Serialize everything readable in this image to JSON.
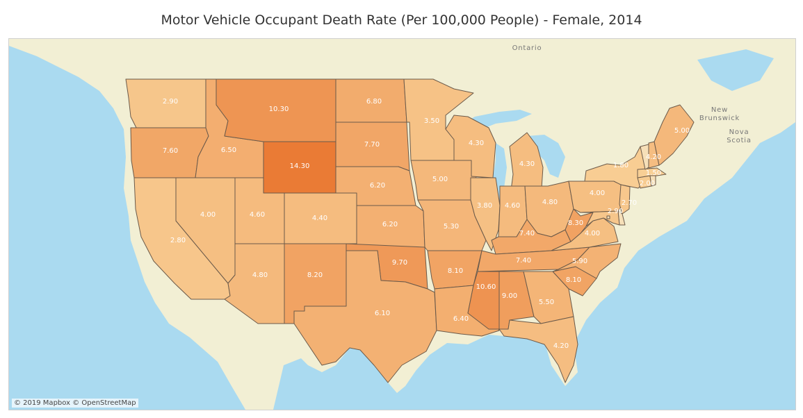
{
  "title": "Motor Vehicle Occupant Death Rate (Per 100,000 People) - Female, 2014",
  "attribution": "© 2019 Mapbox © OpenStreetMap",
  "colors": {
    "water": "#aadaf0",
    "land": "#f2efd4",
    "scale_low": "#f8cf95",
    "scale_high": "#ea7b35",
    "border": "#6b5a4a"
  },
  "place_labels": {
    "ontario": "Ontario",
    "new_brunswick_1": "New",
    "new_brunswick_2": "Brunswick",
    "nova_scotia_1": "Nova",
    "nova_scotia_2": "Scotia"
  },
  "states": [
    {
      "id": "WA",
      "name": "Washington",
      "value": 2.9,
      "label": "2.90"
    },
    {
      "id": "OR",
      "name": "Oregon",
      "value": 7.6,
      "label": "7.60"
    },
    {
      "id": "CA",
      "name": "California",
      "value": 2.8,
      "label": "2.80"
    },
    {
      "id": "ID",
      "name": "Idaho",
      "value": 6.5,
      "label": "6.50"
    },
    {
      "id": "NV",
      "name": "Nevada",
      "value": 4.0,
      "label": "4.00"
    },
    {
      "id": "MT",
      "name": "Montana",
      "value": 10.3,
      "label": "10.30"
    },
    {
      "id": "WY",
      "name": "Wyoming",
      "value": 14.3,
      "label": "14.30"
    },
    {
      "id": "UT",
      "name": "Utah",
      "value": 4.6,
      "label": "4.60"
    },
    {
      "id": "AZ",
      "name": "Arizona",
      "value": 4.8,
      "label": "4.80"
    },
    {
      "id": "CO",
      "name": "Colorado",
      "value": 4.4,
      "label": "4.40"
    },
    {
      "id": "NM",
      "name": "New Mexico",
      "value": 8.2,
      "label": "8.20"
    },
    {
      "id": "ND",
      "name": "North Dakota",
      "value": 6.8,
      "label": "6.80"
    },
    {
      "id": "SD",
      "name": "South Dakota",
      "value": 7.7,
      "label": "7.70"
    },
    {
      "id": "NE",
      "name": "Nebraska",
      "value": 6.2,
      "label": "6.20"
    },
    {
      "id": "KS",
      "name": "Kansas",
      "value": 6.2,
      "label": "6.20"
    },
    {
      "id": "OK",
      "name": "Oklahoma",
      "value": 9.7,
      "label": "9.70"
    },
    {
      "id": "TX",
      "name": "Texas",
      "value": 6.1,
      "label": "6.10"
    },
    {
      "id": "MN",
      "name": "Minnesota",
      "value": 3.5,
      "label": "3.50"
    },
    {
      "id": "IA",
      "name": "Iowa",
      "value": 5.0,
      "label": "5.00"
    },
    {
      "id": "MO",
      "name": "Missouri",
      "value": 5.3,
      "label": "5.30"
    },
    {
      "id": "AR",
      "name": "Arkansas",
      "value": 8.1,
      "label": "8.10"
    },
    {
      "id": "LA",
      "name": "Louisiana",
      "value": 6.4,
      "label": "6.40"
    },
    {
      "id": "WI",
      "name": "Wisconsin",
      "value": 4.3,
      "label": "4.30"
    },
    {
      "id": "IL",
      "name": "Illinois",
      "value": 3.8,
      "label": "3.80"
    },
    {
      "id": "MI",
      "name": "Michigan",
      "value": 4.3,
      "label": "4.30"
    },
    {
      "id": "IN",
      "name": "Indiana",
      "value": 4.6,
      "label": "4.60"
    },
    {
      "id": "OH",
      "name": "Ohio",
      "value": 4.8,
      "label": "4.80"
    },
    {
      "id": "KY",
      "name": "Kentucky",
      "value": 7.4,
      "label": "7.40"
    },
    {
      "id": "TN",
      "name": "Tennessee",
      "value": 7.4,
      "label": "7.40"
    },
    {
      "id": "MS",
      "name": "Mississippi",
      "value": 10.6,
      "label": "10.60"
    },
    {
      "id": "AL",
      "name": "Alabama",
      "value": 9.0,
      "label": "9.00"
    },
    {
      "id": "GA",
      "name": "Georgia",
      "value": 5.5,
      "label": "5.50"
    },
    {
      "id": "FL",
      "name": "Florida",
      "value": 4.2,
      "label": "4.20"
    },
    {
      "id": "SC",
      "name": "South Carolina",
      "value": 8.1,
      "label": "8.10"
    },
    {
      "id": "NC",
      "name": "North Carolina",
      "value": 5.9,
      "label": "5.90"
    },
    {
      "id": "VA",
      "name": "Virginia",
      "value": 4.0,
      "label": "4.00"
    },
    {
      "id": "WV",
      "name": "West Virginia",
      "value": 8.3,
      "label": "8.30"
    },
    {
      "id": "PA",
      "name": "Pennsylvania",
      "value": 4.0,
      "label": "4.00"
    },
    {
      "id": "NY",
      "name": "New York",
      "value": 1.8,
      "label": "1.80"
    },
    {
      "id": "NJ",
      "name": "New Jersey",
      "value": 2.7,
      "label": "2.70"
    },
    {
      "id": "DE",
      "name": "Delaware",
      "value": null,
      "label": ""
    },
    {
      "id": "MD",
      "name": "Maryland",
      "value": 2.9,
      "label": "2.90"
    },
    {
      "id": "DC",
      "name": "District of Columbia",
      "value": null,
      "label": ""
    },
    {
      "id": "CT",
      "name": "Connecticut",
      "value": 2.0,
      "label": "2.00"
    },
    {
      "id": "RI",
      "name": "Rhode Island",
      "value": null,
      "label": ""
    },
    {
      "id": "MA",
      "name": "Massachusetts",
      "value": 1.5,
      "label": "1.50"
    },
    {
      "id": "VT",
      "name": "Vermont",
      "value": null,
      "label": ""
    },
    {
      "id": "NH",
      "name": "New Hampshire",
      "value": 4.2,
      "label": "4.20"
    },
    {
      "id": "ME",
      "name": "Maine",
      "value": 5.0,
      "label": "5.00"
    }
  ]
}
